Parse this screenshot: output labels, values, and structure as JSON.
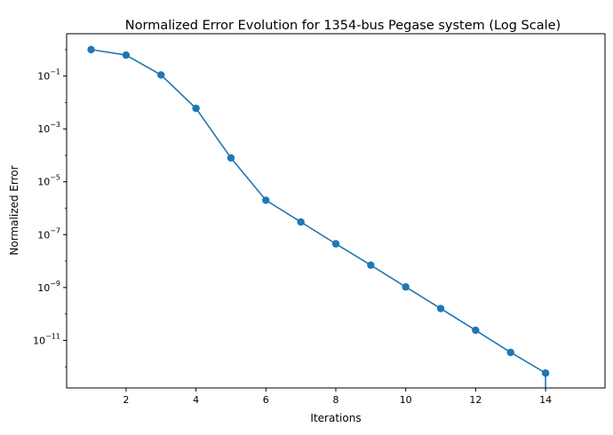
{
  "chart_data": {
    "type": "line",
    "title": "Normalized Error Evolution for 1354-bus Pegase system (Log Scale)",
    "xlabel": "Iterations",
    "ylabel": "Normalized Error",
    "yscale": "log",
    "xlim": [
      0.3,
      15.7
    ],
    "ylim_exponent": [
      -12.8,
      0.6
    ],
    "xticks": [
      2,
      4,
      6,
      8,
      10,
      12,
      14
    ],
    "yticks": [
      {
        "base": "10",
        "exp": "−1",
        "value": -1
      },
      {
        "base": "10",
        "exp": "−3",
        "value": -3
      },
      {
        "base": "10",
        "exp": "−5",
        "value": -5
      },
      {
        "base": "10",
        "exp": "−7",
        "value": -7
      },
      {
        "base": "10",
        "exp": "−9",
        "value": -9
      },
      {
        "base": "10",
        "exp": "−11",
        "value": -11
      }
    ],
    "grid": false,
    "color": "#1f77b4",
    "series": [
      {
        "x": [
          1,
          2,
          3,
          4,
          5,
          6,
          7,
          8,
          9,
          10,
          11,
          12,
          13,
          14
        ],
        "y": [
          1.0,
          0.62,
          0.11,
          0.006,
          8e-05,
          2e-06,
          3e-07,
          4.5e-08,
          7e-09,
          1.05e-09,
          1.6e-10,
          2.4e-11,
          3.5e-12,
          5.8e-13
        ],
        "marker": "circle"
      }
    ]
  }
}
